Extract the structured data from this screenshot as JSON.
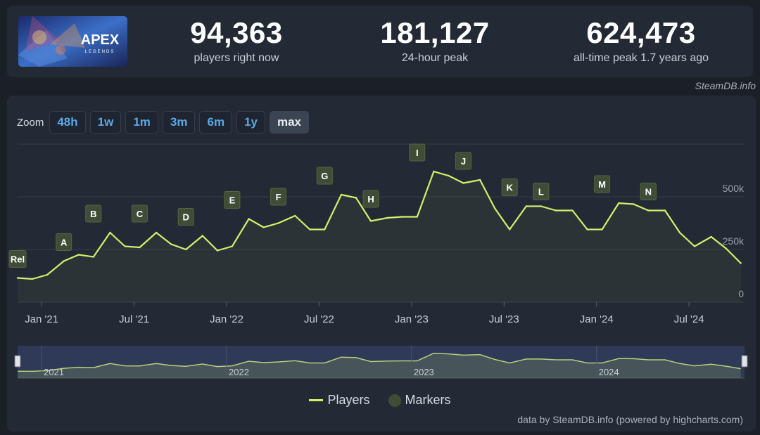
{
  "game": {
    "logo_text": "APEX",
    "logo_subtext": "LEGENDS"
  },
  "stats": [
    {
      "value": "94,363",
      "label": "players right now"
    },
    {
      "value": "181,127",
      "label": "24-hour peak"
    },
    {
      "value": "624,473",
      "label": "all-time peak 1.7 years ago"
    }
  ],
  "credit_top": "SteamDB.info",
  "zoom": {
    "label": "Zoom",
    "buttons": [
      "48h",
      "1w",
      "1m",
      "3m",
      "6m",
      "1y",
      "max"
    ],
    "active": "max"
  },
  "legend": {
    "players": "Players",
    "markers": "Markers"
  },
  "credit_bottom": "data by SteamDB.info (powered by highcharts.com)",
  "colors": {
    "line": "#d2f06a",
    "marker_bg": "#3f4d36",
    "grid": "#353d49",
    "accent": "#5aa9e8"
  },
  "chart_data": {
    "type": "line",
    "title": "",
    "series": [
      {
        "name": "Players",
        "x": [
          2020.87,
          2020.95,
          2021.03,
          2021.12,
          2021.2,
          2021.28,
          2021.37,
          2021.45,
          2021.53,
          2021.62,
          2021.7,
          2021.78,
          2021.87,
          2021.95,
          2022.03,
          2022.12,
          2022.2,
          2022.28,
          2022.37,
          2022.45,
          2022.53,
          2022.62,
          2022.7,
          2022.78,
          2022.87,
          2022.95,
          2023.03,
          2023.12,
          2023.2,
          2023.28,
          2023.37,
          2023.45,
          2023.53,
          2023.62,
          2023.7,
          2023.78,
          2023.87,
          2023.95,
          2024.03,
          2024.12,
          2024.2,
          2024.28,
          2024.37,
          2024.45,
          2024.53,
          2024.62,
          2024.7,
          2024.78
        ],
        "y": [
          115000,
          110000,
          130000,
          195000,
          225000,
          215000,
          330000,
          265000,
          260000,
          330000,
          275000,
          250000,
          315000,
          245000,
          265000,
          395000,
          355000,
          375000,
          410000,
          345000,
          345000,
          510000,
          495000,
          385000,
          400000,
          405000,
          405000,
          620000,
          600000,
          565000,
          580000,
          445000,
          345000,
          455000,
          455000,
          435000,
          435000,
          345000,
          345000,
          470000,
          465000,
          435000,
          435000,
          330000,
          265000,
          310000,
          255000,
          185000
        ]
      }
    ],
    "markers": [
      {
        "label": "Rel",
        "x": 2020.87,
        "y": 115000
      },
      {
        "label": "A",
        "x": 2021.12,
        "y": 195000
      },
      {
        "label": "B",
        "x": 2021.28,
        "y": 330000
      },
      {
        "label": "C",
        "x": 2021.53,
        "y": 330000
      },
      {
        "label": "D",
        "x": 2021.78,
        "y": 315000
      },
      {
        "label": "E",
        "x": 2022.03,
        "y": 395000
      },
      {
        "label": "F",
        "x": 2022.28,
        "y": 410000
      },
      {
        "label": "G",
        "x": 2022.53,
        "y": 510000
      },
      {
        "label": "H",
        "x": 2022.78,
        "y": 400000
      },
      {
        "label": "I",
        "x": 2023.03,
        "y": 620000
      },
      {
        "label": "J",
        "x": 2023.28,
        "y": 580000
      },
      {
        "label": "K",
        "x": 2023.53,
        "y": 455000
      },
      {
        "label": "L",
        "x": 2023.7,
        "y": 435000
      },
      {
        "label": "M",
        "x": 2024.03,
        "y": 470000
      },
      {
        "label": "N",
        "x": 2024.28,
        "y": 435000
      }
    ],
    "x_ticks": [
      {
        "label": "Jan '21",
        "x": 2021.0
      },
      {
        "label": "Jul '21",
        "x": 2021.5
      },
      {
        "label": "Jan '22",
        "x": 2022.0
      },
      {
        "label": "Jul '22",
        "x": 2022.5
      },
      {
        "label": "Jan '23",
        "x": 2023.0
      },
      {
        "label": "Jul '23",
        "x": 2023.5
      },
      {
        "label": "Jan '24",
        "x": 2024.0
      },
      {
        "label": "Jul '24",
        "x": 2024.5
      }
    ],
    "y_ticks": [
      {
        "label": "0",
        "value": 0
      },
      {
        "label": "250k",
        "value": 250000
      },
      {
        "label": "500k",
        "value": 500000
      }
    ],
    "xlim": [
      2020.87,
      2024.8
    ],
    "ylim": [
      0,
      750000
    ],
    "navigator": {
      "labels": [
        {
          "label": "2021",
          "x": 2021.0
        },
        {
          "label": "2022",
          "x": 2022.0
        },
        {
          "label": "2023",
          "x": 2023.0
        },
        {
          "label": "2024",
          "x": 2024.0
        }
      ]
    }
  }
}
